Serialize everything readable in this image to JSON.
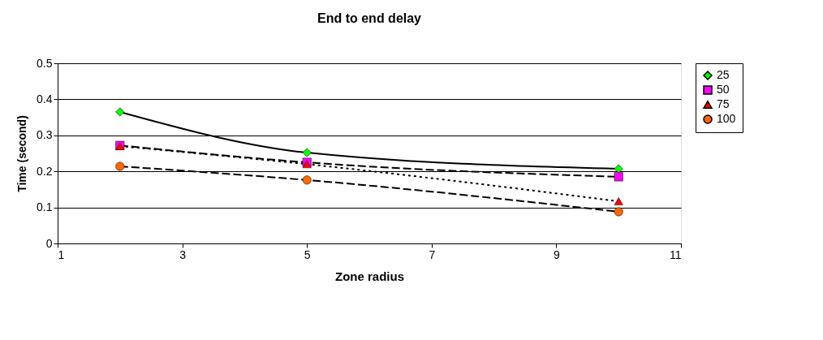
{
  "chart_data": {
    "type": "line",
    "title": "End to end delay",
    "xlabel": "Zone radius",
    "ylabel": "Time (second)",
    "x": [
      2,
      5,
      10
    ],
    "series": [
      {
        "name": "25",
        "color": "#00ff00",
        "values": [
          0.365,
          0.252,
          0.207
        ],
        "marker": "diamond",
        "line_style": "solid"
      },
      {
        "name": "50",
        "color": "#ff00ff",
        "values": [
          0.272,
          0.225,
          0.185
        ],
        "marker": "square",
        "line_style": "dashed"
      },
      {
        "name": "75",
        "color": "#ff0000",
        "values": [
          0.27,
          0.22,
          0.117
        ],
        "marker": "triangle",
        "line_style": "dotted"
      },
      {
        "name": "100",
        "color": "#ff6600",
        "values": [
          0.214,
          0.176,
          0.088
        ],
        "marker": "circle",
        "line_style": "dashed"
      }
    ],
    "xlim": [
      1,
      11
    ],
    "xticks": [
      1,
      3,
      5,
      7,
      9,
      11
    ],
    "ylim": [
      0,
      0.5
    ],
    "yticks": [
      0,
      0.1,
      0.2,
      0.3,
      0.4,
      0.5
    ],
    "grid": "y",
    "legend": "right"
  }
}
